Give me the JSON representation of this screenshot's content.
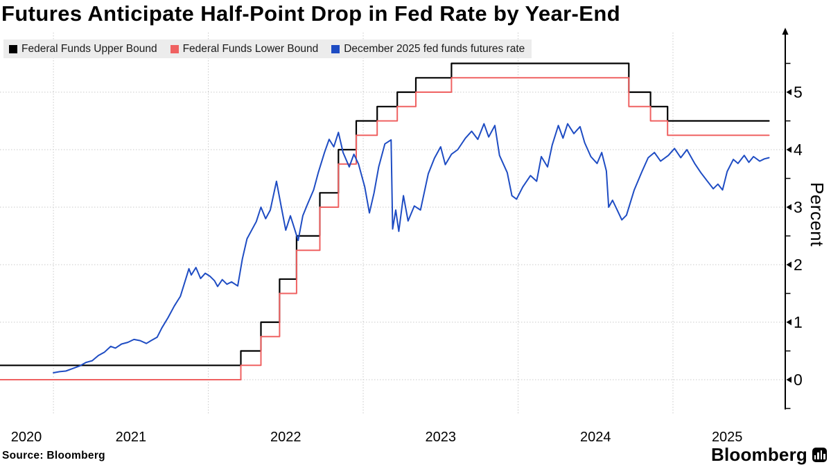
{
  "title": "Futures Anticipate Half-Point Drop in Fed Rate by Year-End",
  "source": "Source: Bloomberg",
  "brand": "Bloomberg",
  "colors": {
    "background": "#ffffff",
    "grid": "#c9c9c9",
    "axis": "#000000",
    "legend_bg": "#ececec",
    "upper_bound": "#000000",
    "lower_bound": "#ef6161",
    "futures": "#1e4cc3"
  },
  "legend": [
    {
      "label": "Federal Funds Upper Bound",
      "color": "#000000"
    },
    {
      "label": "Federal Funds Lower Bound",
      "color": "#ef6161"
    },
    {
      "label": "December 2025 fed funds futures rate",
      "color": "#1e4cc3"
    }
  ],
  "chart_data": {
    "type": "line",
    "title": "Futures Anticipate Half-Point Drop in Fed Rate by Year-End",
    "xlabel": "",
    "ylabel": "Percent",
    "y_axis_side": "right",
    "ylim": [
      -0.5,
      5.5
    ],
    "y_major_ticks": [
      0,
      1,
      2,
      3,
      4,
      5
    ],
    "y_minor_ticks": [
      -0.5,
      0.5,
      1.5,
      2.5,
      3.5,
      4.5,
      5.5
    ],
    "xlim": [
      2020.655,
      2025.725
    ],
    "x_gridlines": [
      2021,
      2022,
      2023,
      2024,
      2025
    ],
    "x_tick_labels": [
      {
        "label": "2020",
        "x": 2020.825
      },
      {
        "label": "2021",
        "x": 2021.5
      },
      {
        "label": "2022",
        "x": 2022.5
      },
      {
        "label": "2023",
        "x": 2023.5
      },
      {
        "label": "2024",
        "x": 2024.5
      },
      {
        "label": "2025",
        "x": 2025.35
      }
    ],
    "grid": true,
    "legend_position": "top-left",
    "series": [
      {
        "name": "Federal Funds Upper Bound",
        "color": "#000000",
        "mode": "step",
        "width": 2.2,
        "points": [
          [
            2020.655,
            0.25
          ],
          [
            2022.21,
            0.5
          ],
          [
            2022.34,
            1.0
          ],
          [
            2022.46,
            1.75
          ],
          [
            2022.57,
            2.5
          ],
          [
            2022.72,
            3.25
          ],
          [
            2022.84,
            4.0
          ],
          [
            2022.955,
            4.5
          ],
          [
            2023.09,
            4.75
          ],
          [
            2023.22,
            5.0
          ],
          [
            2023.34,
            5.25
          ],
          [
            2023.57,
            5.5
          ],
          [
            2024.715,
            5.0
          ],
          [
            2024.855,
            4.75
          ],
          [
            2024.965,
            4.5
          ],
          [
            2025.62,
            4.5
          ]
        ]
      },
      {
        "name": "Federal Funds Lower Bound",
        "color": "#ef6161",
        "mode": "step",
        "width": 2,
        "points": [
          [
            2020.655,
            0.0
          ],
          [
            2022.21,
            0.25
          ],
          [
            2022.34,
            0.75
          ],
          [
            2022.46,
            1.5
          ],
          [
            2022.57,
            2.25
          ],
          [
            2022.72,
            3.0
          ],
          [
            2022.84,
            3.75
          ],
          [
            2022.955,
            4.25
          ],
          [
            2023.09,
            4.5
          ],
          [
            2023.22,
            4.75
          ],
          [
            2023.34,
            5.0
          ],
          [
            2023.57,
            5.25
          ],
          [
            2024.715,
            4.75
          ],
          [
            2024.855,
            4.5
          ],
          [
            2024.965,
            4.25
          ],
          [
            2025.62,
            4.25
          ]
        ]
      },
      {
        "name": "December 2025 fed funds futures rate",
        "color": "#1e4cc3",
        "mode": "line",
        "width": 2,
        "points": [
          [
            2021.0,
            0.12
          ],
          [
            2021.04,
            0.14
          ],
          [
            2021.08,
            0.15
          ],
          [
            2021.13,
            0.2
          ],
          [
            2021.17,
            0.24
          ],
          [
            2021.21,
            0.3
          ],
          [
            2021.25,
            0.33
          ],
          [
            2021.29,
            0.42
          ],
          [
            2021.33,
            0.48
          ],
          [
            2021.37,
            0.58
          ],
          [
            2021.4,
            0.55
          ],
          [
            2021.44,
            0.62
          ],
          [
            2021.48,
            0.65
          ],
          [
            2021.52,
            0.7
          ],
          [
            2021.56,
            0.68
          ],
          [
            2021.6,
            0.63
          ],
          [
            2021.63,
            0.68
          ],
          [
            2021.67,
            0.74
          ],
          [
            2021.7,
            0.9
          ],
          [
            2021.74,
            1.08
          ],
          [
            2021.78,
            1.28
          ],
          [
            2021.82,
            1.45
          ],
          [
            2021.86,
            1.8
          ],
          [
            2021.875,
            1.93
          ],
          [
            2021.89,
            1.82
          ],
          [
            2021.92,
            1.95
          ],
          [
            2021.95,
            1.76
          ],
          [
            2021.98,
            1.85
          ],
          [
            2022.01,
            1.8
          ],
          [
            2022.04,
            1.72
          ],
          [
            2022.06,
            1.62
          ],
          [
            2022.09,
            1.74
          ],
          [
            2022.12,
            1.66
          ],
          [
            2022.15,
            1.7
          ],
          [
            2022.19,
            1.63
          ],
          [
            2022.22,
            2.1
          ],
          [
            2022.25,
            2.45
          ],
          [
            2022.28,
            2.6
          ],
          [
            2022.31,
            2.75
          ],
          [
            2022.34,
            3.0
          ],
          [
            2022.37,
            2.8
          ],
          [
            2022.4,
            2.95
          ],
          [
            2022.44,
            3.45
          ],
          [
            2022.47,
            3.02
          ],
          [
            2022.5,
            2.6
          ],
          [
            2022.53,
            2.85
          ],
          [
            2022.55,
            2.68
          ],
          [
            2022.58,
            2.42
          ],
          [
            2022.61,
            2.85
          ],
          [
            2022.64,
            3.05
          ],
          [
            2022.68,
            3.3
          ],
          [
            2022.71,
            3.6
          ],
          [
            2022.75,
            3.95
          ],
          [
            2022.78,
            4.18
          ],
          [
            2022.81,
            4.05
          ],
          [
            2022.84,
            4.3
          ],
          [
            2022.87,
            3.95
          ],
          [
            2022.91,
            3.7
          ],
          [
            2022.94,
            3.92
          ],
          [
            2022.97,
            3.75
          ],
          [
            2023.01,
            3.35
          ],
          [
            2023.04,
            2.9
          ],
          [
            2023.07,
            3.25
          ],
          [
            2023.1,
            3.7
          ],
          [
            2023.14,
            4.1
          ],
          [
            2023.18,
            4.17
          ],
          [
            2023.19,
            2.62
          ],
          [
            2023.21,
            2.95
          ],
          [
            2023.23,
            2.58
          ],
          [
            2023.26,
            3.2
          ],
          [
            2023.29,
            2.76
          ],
          [
            2023.33,
            3.02
          ],
          [
            2023.37,
            2.95
          ],
          [
            2023.42,
            3.58
          ],
          [
            2023.46,
            3.85
          ],
          [
            2023.5,
            4.05
          ],
          [
            2023.53,
            3.74
          ],
          [
            2023.57,
            3.92
          ],
          [
            2023.61,
            4.0
          ],
          [
            2023.66,
            4.2
          ],
          [
            2023.7,
            4.32
          ],
          [
            2023.74,
            4.18
          ],
          [
            2023.78,
            4.45
          ],
          [
            2023.81,
            4.22
          ],
          [
            2023.85,
            4.42
          ],
          [
            2023.88,
            3.9
          ],
          [
            2023.93,
            3.6
          ],
          [
            2023.96,
            3.2
          ],
          [
            2023.99,
            3.14
          ],
          [
            2024.03,
            3.35
          ],
          [
            2024.08,
            3.55
          ],
          [
            2024.12,
            3.45
          ],
          [
            2024.15,
            3.88
          ],
          [
            2024.19,
            3.7
          ],
          [
            2024.22,
            4.08
          ],
          [
            2024.26,
            4.42
          ],
          [
            2024.29,
            4.2
          ],
          [
            2024.32,
            4.45
          ],
          [
            2024.36,
            4.28
          ],
          [
            2024.4,
            4.4
          ],
          [
            2024.43,
            4.12
          ],
          [
            2024.47,
            3.88
          ],
          [
            2024.51,
            3.76
          ],
          [
            2024.54,
            3.95
          ],
          [
            2024.57,
            3.63
          ],
          [
            2024.585,
            3.0
          ],
          [
            2024.61,
            3.12
          ],
          [
            2024.64,
            2.95
          ],
          [
            2024.67,
            2.78
          ],
          [
            2024.7,
            2.86
          ],
          [
            2024.75,
            3.3
          ],
          [
            2024.8,
            3.62
          ],
          [
            2024.84,
            3.86
          ],
          [
            2024.88,
            3.95
          ],
          [
            2024.92,
            3.8
          ],
          [
            2024.97,
            3.9
          ],
          [
            2025.01,
            4.02
          ],
          [
            2025.05,
            3.86
          ],
          [
            2025.09,
            4.0
          ],
          [
            2025.14,
            3.76
          ],
          [
            2025.18,
            3.6
          ],
          [
            2025.22,
            3.46
          ],
          [
            2025.26,
            3.32
          ],
          [
            2025.29,
            3.4
          ],
          [
            2025.32,
            3.3
          ],
          [
            2025.35,
            3.62
          ],
          [
            2025.39,
            3.83
          ],
          [
            2025.42,
            3.76
          ],
          [
            2025.46,
            3.9
          ],
          [
            2025.49,
            3.78
          ],
          [
            2025.52,
            3.88
          ],
          [
            2025.56,
            3.8
          ],
          [
            2025.59,
            3.84
          ],
          [
            2025.62,
            3.86
          ]
        ]
      }
    ]
  }
}
